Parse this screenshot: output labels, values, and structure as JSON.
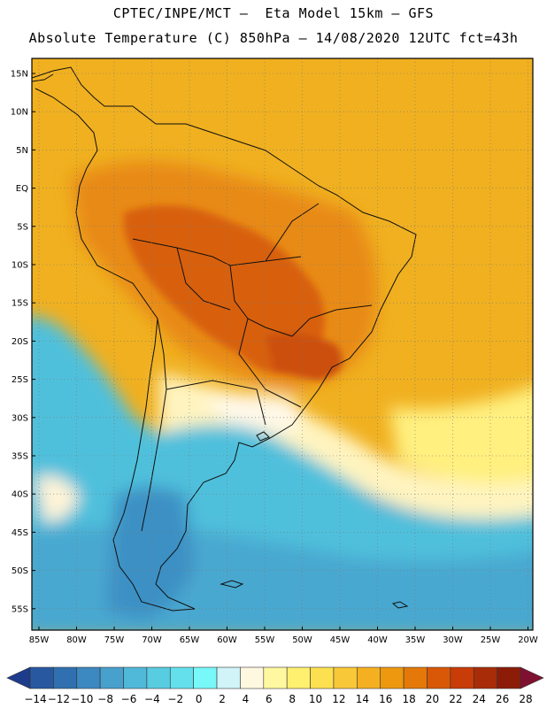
{
  "header": {
    "line1": "CPTEC/INPE/MCT –  Eta Model 15km – GFS",
    "line2": "Absolute Temperature (C) 850hPa – 14/08/2020 12UTC fct=43h"
  },
  "axes": {
    "lat_labels": [
      "15N",
      "10N",
      "5N",
      "EQ",
      "5S",
      "10S",
      "15S",
      "20S",
      "25S",
      "30S",
      "35S",
      "40S",
      "45S",
      "50S",
      "55S"
    ],
    "lon_labels": [
      "85W",
      "80W",
      "75W",
      "70W",
      "65W",
      "60W",
      "55W",
      "50W",
      "45W",
      "40W",
      "35W",
      "30W",
      "25W",
      "20W"
    ]
  },
  "colorbar": {
    "labels": [
      "-14",
      "-12",
      "-10",
      "-8",
      "-6",
      "-4",
      "-2",
      "0",
      "2",
      "4",
      "6",
      "8",
      "10",
      "12",
      "14",
      "16",
      "18",
      "20",
      "22",
      "24",
      "26",
      "28"
    ],
    "colors": [
      "#1e3c8c",
      "#2858a0",
      "#3070b0",
      "#3c88c0",
      "#48a0cc",
      "#50b8d8",
      "#58cce0",
      "#64e0ec",
      "#78f8f8",
      "#d0f4f8",
      "#fff8e0",
      "#fff8a0",
      "#fff070",
      "#fce050",
      "#f8c838",
      "#f4b020",
      "#ee9810",
      "#e47808",
      "#d85808",
      "#c83c08",
      "#a82c08",
      "#8c1c08",
      "#801030"
    ]
  }
}
